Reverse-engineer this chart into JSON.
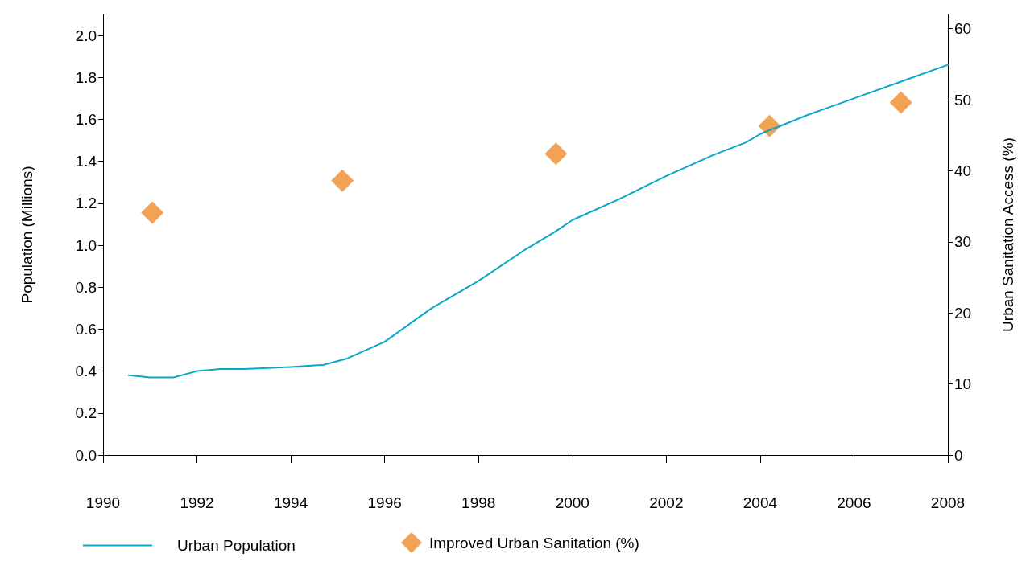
{
  "chart_data": {
    "type": "line",
    "xlabel": null,
    "ylabel": "Population (Millions)",
    "y2label": "Urban Sanitation Access (%)",
    "xlim": [
      1990,
      2008
    ],
    "xticks": [
      1990,
      1992,
      1994,
      1996,
      1998,
      2000,
      2002,
      2004,
      2006,
      2008
    ],
    "ylim": [
      0,
      2.1
    ],
    "yticks": [
      {
        "value": 0,
        "label": "0.0"
      },
      {
        "value": 0.2,
        "label": "0.2"
      },
      {
        "value": 0.4,
        "label": "0.4"
      },
      {
        "value": 0.6,
        "label": "0.6"
      },
      {
        "value": 0.8,
        "label": "0.8"
      },
      {
        "value": 1,
        "label": "1.0"
      },
      {
        "value": 1.2,
        "label": "1.2"
      },
      {
        "value": 1.4,
        "label": "1.4"
      },
      {
        "value": 1.6,
        "label": "1.6"
      },
      {
        "value": 1.8,
        "label": "1.8"
      },
      {
        "value": 2,
        "label": "2.0"
      }
    ],
    "y2lim": [
      0,
      62
    ],
    "y2ticks": [
      0,
      10,
      20,
      30,
      40,
      50,
      60
    ],
    "grid": false,
    "legend": "bottom",
    "series": [
      {
        "name": "Urban Population",
        "marker": "none",
        "line_style": "solid",
        "color": "#0aa6c9",
        "x": [
          1990.55,
          1991,
          1991.5,
          1992,
          1992.5,
          1993,
          1994,
          1994.7,
          1995.2,
          1996,
          1997,
          1998,
          1999,
          1999.6,
          2000,
          2001,
          2002,
          2003,
          2003.7,
          2004,
          2005,
          2006,
          2007,
          2008
        ],
        "values": [
          0.38,
          0.37,
          0.37,
          0.4,
          0.41,
          0.41,
          0.42,
          0.43,
          0.46,
          0.54,
          0.7,
          0.83,
          0.98,
          1.06,
          1.12,
          1.22,
          1.33,
          1.43,
          1.49,
          1.53,
          1.62,
          1.7,
          1.78,
          1.86
        ]
      },
      {
        "name": "Improved Urban Sanitation (%)",
        "type": "scatter",
        "marker": "diamond",
        "axis": "y2",
        "color": "#ee8c2a",
        "x": [
          1991.05,
          1995.1,
          1999.65,
          2004.2,
          2007
        ],
        "values": [
          34.1,
          38.6,
          42.4,
          46.3,
          49.6
        ]
      }
    ]
  }
}
